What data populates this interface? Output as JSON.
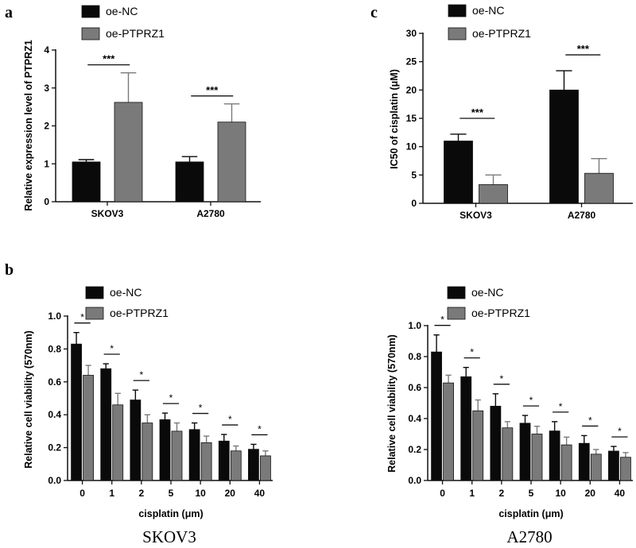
{
  "panels": {
    "a": "a",
    "b": "b",
    "c": "c"
  },
  "captions": {
    "left": "SKOV3",
    "right": "A2780"
  },
  "colors": {
    "ncFill": "#0a0a0a",
    "ptFill": "#7a7a7a",
    "axis": "#111111"
  },
  "chart_data": [
    {
      "id": "a",
      "type": "bar",
      "title": "",
      "xlabel": "",
      "ylabel": "Relative expression level of PTPRZ1",
      "ylim": [
        0,
        4
      ],
      "yticks": [
        "0",
        "1",
        "2",
        "3",
        "4"
      ],
      "categories": [
        "SKOV3",
        "A2780"
      ],
      "series": [
        {
          "name": "oe-NC",
          "values": [
            1.05,
            1.05
          ],
          "errors": [
            0.06,
            0.14
          ]
        },
        {
          "name": "oe-PTPRZ1",
          "values": [
            2.62,
            2.1
          ],
          "errors": [
            0.78,
            0.48
          ]
        }
      ],
      "significance": [
        "***",
        "***"
      ],
      "legend": [
        "oe-NC",
        "oe-PTPRZ1"
      ],
      "legend_position": "top-left"
    },
    {
      "id": "c",
      "type": "bar",
      "title": "",
      "xlabel": "",
      "ylabel": "IC50 of cisplatin (μM)",
      "ylim": [
        0,
        30
      ],
      "yticks": [
        "0",
        "5",
        "10",
        "15",
        "20",
        "25",
        "30"
      ],
      "categories": [
        "SKOV3",
        "A2780"
      ],
      "series": [
        {
          "name": "oe-NC",
          "values": [
            11.0,
            20.0
          ],
          "errors": [
            1.2,
            3.4
          ]
        },
        {
          "name": "oe-PTPRZ1",
          "values": [
            3.3,
            5.3
          ],
          "errors": [
            1.7,
            2.6
          ]
        }
      ],
      "significance": [
        "***",
        "***"
      ],
      "legend": [
        "oe-NC",
        "oe-PTPRZ1"
      ],
      "legend_position": "top-left"
    },
    {
      "id": "b-left",
      "type": "bar",
      "title": "",
      "xlabel": "cisplatin (μm)",
      "ylabel": "Relative cell viability (570nm)",
      "ylim": [
        0,
        1.0
      ],
      "yticks": [
        "0.0",
        "0.2",
        "0.4",
        "0.6",
        "0.8",
        "1.0"
      ],
      "categories": [
        "0",
        "1",
        "2",
        "5",
        "10",
        "20",
        "40"
      ],
      "series": [
        {
          "name": "oe-NC",
          "values": [
            0.83,
            0.68,
            0.49,
            0.37,
            0.31,
            0.24,
            0.19
          ],
          "errors": [
            0.07,
            0.03,
            0.06,
            0.04,
            0.04,
            0.04,
            0.03
          ]
        },
        {
          "name": "oe-PTPRZ1",
          "values": [
            0.64,
            0.46,
            0.35,
            0.3,
            0.23,
            0.18,
            0.15
          ],
          "errors": [
            0.06,
            0.07,
            0.05,
            0.05,
            0.04,
            0.03,
            0.03
          ]
        }
      ],
      "significance": [
        "*",
        "*",
        "*",
        "*",
        "*",
        "*",
        "*"
      ],
      "legend": [
        "oe-NC",
        "oe-PTPRZ1"
      ],
      "legend_position": "top-left"
    },
    {
      "id": "b-right",
      "type": "bar",
      "title": "",
      "xlabel": "cisplatin (μm)",
      "ylabel": "Relative cell viability (570nm)",
      "ylim": [
        0,
        1.0
      ],
      "yticks": [
        "0.0",
        "0.2",
        "0.4",
        "0.6",
        "0.8",
        "1.0"
      ],
      "categories": [
        "0",
        "1",
        "2",
        "5",
        "10",
        "20",
        "40"
      ],
      "series": [
        {
          "name": "oe-NC",
          "values": [
            0.83,
            0.67,
            0.48,
            0.37,
            0.32,
            0.24,
            0.19
          ],
          "errors": [
            0.11,
            0.06,
            0.08,
            0.05,
            0.06,
            0.05,
            0.03
          ]
        },
        {
          "name": "oe-PTPRZ1",
          "values": [
            0.63,
            0.45,
            0.34,
            0.3,
            0.23,
            0.17,
            0.15
          ],
          "errors": [
            0.05,
            0.07,
            0.04,
            0.05,
            0.05,
            0.03,
            0.03
          ]
        }
      ],
      "significance": [
        "*",
        "*",
        "*",
        "*",
        "*",
        "*",
        "*"
      ],
      "legend": [
        "oe-NC",
        "oe-PTPRZ1"
      ],
      "legend_position": "top-left"
    }
  ]
}
